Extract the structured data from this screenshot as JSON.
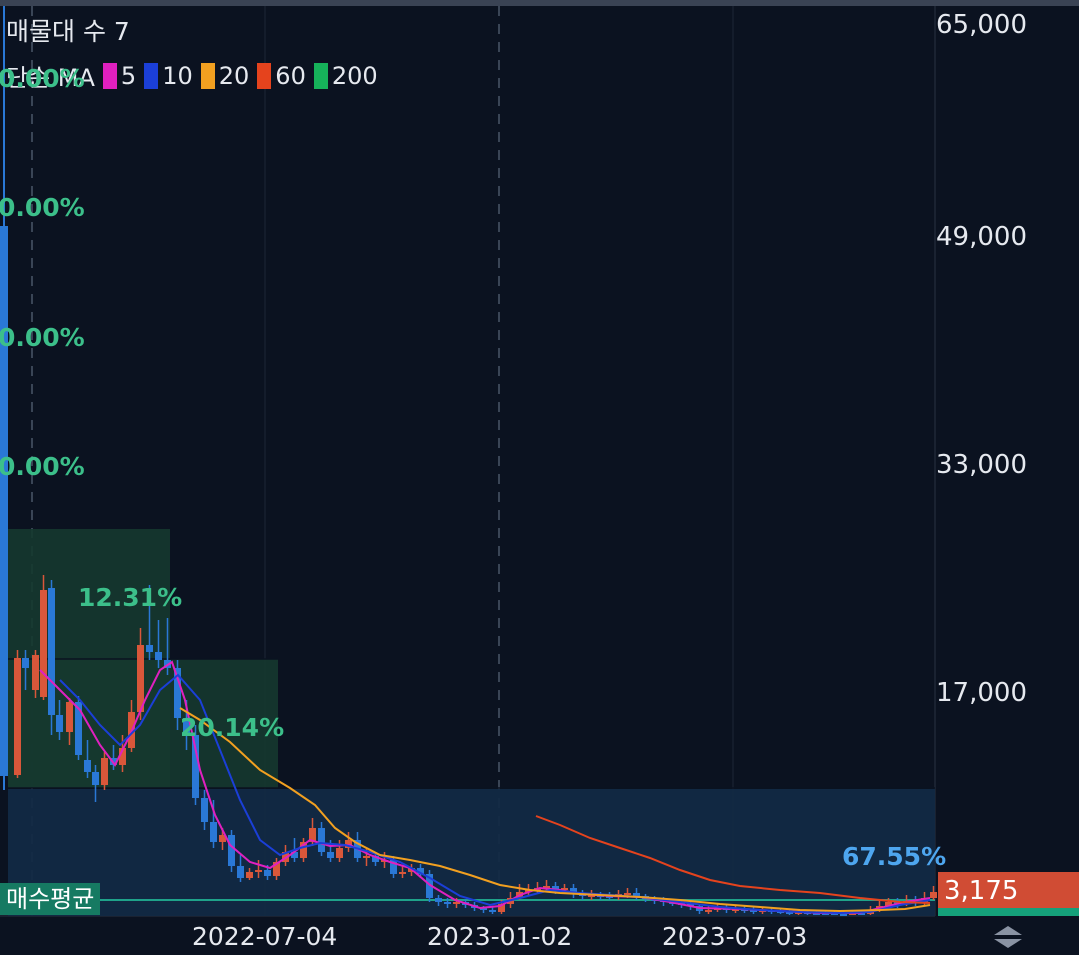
{
  "legend": {
    "title": "매물대 수 7",
    "ma_prefix": "단순 MA",
    "ma": [
      {
        "period": "5",
        "color": "#e020c0"
      },
      {
        "period": "10",
        "color": "#1b3fd8"
      },
      {
        "period": "20",
        "color": "#f2a020"
      },
      {
        "period": "60",
        "color": "#e5431d"
      },
      {
        "period": "200",
        "color": "#16b25a"
      }
    ]
  },
  "y_axis": [
    "65,000",
    "49,000",
    "33,000",
    "17,000"
  ],
  "x_axis": [
    "2022-07-04",
    "2023-01-02",
    "2023-07-03"
  ],
  "volume_profile_labels": {
    "top_partial": "0.00%",
    "z1": "0.00%",
    "z2": "0.00%",
    "z3": "0.00%",
    "z4": "12.31%",
    "z5": "20.14%",
    "z6": "67.55%"
  },
  "avg_label": "매수평균",
  "current_price": "3,175",
  "colors": {
    "up": "#d9573a",
    "down": "#2a78d6",
    "background": "#0b1220",
    "zone_green": "#15392f",
    "zone_blue": "#122a44"
  },
  "chart_data": {
    "type": "candlestick",
    "y_ticks": [
      65000,
      49000,
      33000,
      17000
    ],
    "x_ticks": [
      "2022-07-04",
      "2023-01-02",
      "2023-07-03"
    ],
    "volume_profile_percent": [
      0.0,
      0.0,
      0.0,
      0.0,
      12.31,
      20.14,
      67.55
    ],
    "moving_averages": [
      5,
      10,
      20,
      60,
      200
    ],
    "last_price": 3175
  }
}
